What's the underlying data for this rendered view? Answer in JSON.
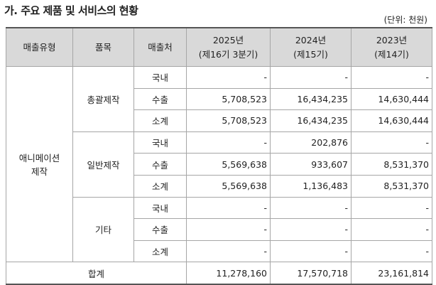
{
  "title": "가. 주요 제품 및 서비스의 현황",
  "unit": "(단위: 천원)",
  "table": {
    "header": [
      [
        "매출유형"
      ],
      [
        "품목"
      ],
      [
        "매출처"
      ],
      [
        "2025년",
        "(제16기 3분기)"
      ],
      [
        "2024년",
        "(제15기)"
      ],
      [
        "2023년",
        "(제14기)"
      ]
    ],
    "type": [
      "애니메이션",
      "제작"
    ],
    "groups": [
      {
        "item": "총괄제작",
        "rows": [
          [
            "국내",
            "-",
            "-",
            "-"
          ],
          [
            "수출",
            "5,708,523",
            "16,434,235",
            "14,630,444"
          ],
          [
            "소계",
            "5,708,523",
            "16,434,235",
            "14,630,444"
          ]
        ]
      },
      {
        "item": "일반제작",
        "rows": [
          [
            "국내",
            "-",
            "202,876",
            "-"
          ],
          [
            "수출",
            "5,569,638",
            "933,607",
            "8,531,370"
          ],
          [
            "소계",
            "5,569,638",
            "1,136,483",
            "8,531,370"
          ]
        ]
      },
      {
        "item": "기타",
        "rows": [
          [
            "국내",
            "-",
            "-",
            "-"
          ],
          [
            "수출",
            "-",
            "-",
            "-"
          ],
          [
            "소계",
            "-",
            "-",
            "-"
          ]
        ]
      }
    ],
    "total": {
      "label": "합계",
      "values": [
        "11,278,160",
        "17,570,718",
        "23,161,814"
      ]
    }
  }
}
